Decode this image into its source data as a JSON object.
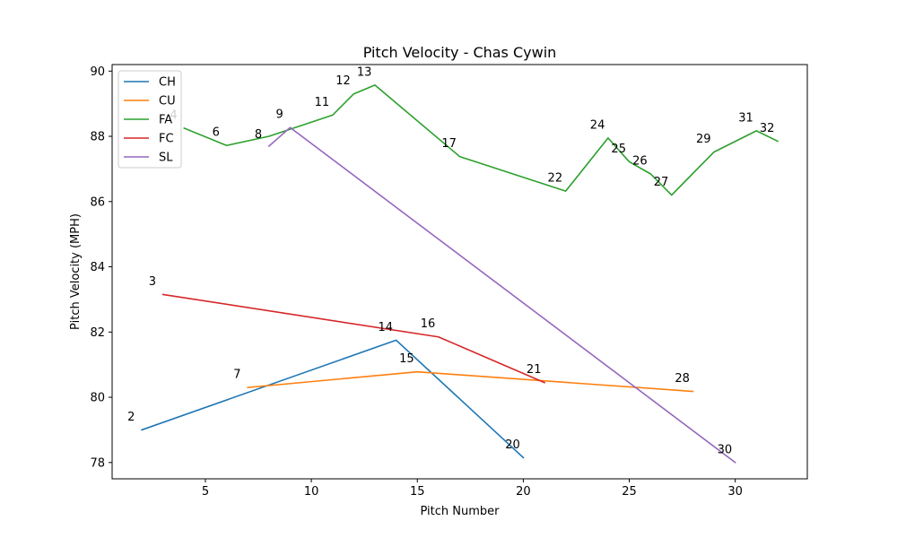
{
  "chart_data": {
    "type": "line",
    "title": "Pitch Velocity - Chas Cywin",
    "xlabel": "Pitch Number",
    "ylabel": "Pitch Velocity (MPH)",
    "xlim": [
      0.6,
      33.4
    ],
    "ylim": [
      77.5,
      90.2
    ],
    "xticks": [
      5,
      10,
      15,
      20,
      25,
      30
    ],
    "yticks": [
      78,
      80,
      82,
      84,
      86,
      88,
      90
    ],
    "legend_position": "top-left",
    "grid": false,
    "series": [
      {
        "name": "CH",
        "color": "#1f77b4",
        "x": [
          2,
          14,
          20
        ],
        "y": [
          79.0,
          81.75,
          78.15
        ]
      },
      {
        "name": "CU",
        "color": "#ff7f0e",
        "x": [
          7,
          15,
          28
        ],
        "y": [
          80.3,
          80.78,
          80.18
        ]
      },
      {
        "name": "FA",
        "color": "#2ca02c",
        "x": [
          4,
          6,
          8,
          11,
          12,
          13,
          17,
          22,
          24,
          25,
          26,
          27,
          29,
          31,
          32
        ],
        "y": [
          88.25,
          87.72,
          88.0,
          88.65,
          89.3,
          89.57,
          87.38,
          86.32,
          87.95,
          87.22,
          86.85,
          86.2,
          87.52,
          88.17,
          87.85
        ]
      },
      {
        "name": "FC",
        "color": "#d62728",
        "x": [
          3,
          16,
          21
        ],
        "y": [
          83.15,
          81.85,
          80.45
        ]
      },
      {
        "name": "SL",
        "color": "#9467bd",
        "x": [
          8,
          9,
          30
        ],
        "y": [
          87.7,
          88.27,
          78.0
        ]
      }
    ],
    "annotations": [
      {
        "text": "2",
        "x": 1.5,
        "y": 79.4
      },
      {
        "text": "3",
        "x": 2.5,
        "y": 83.55
      },
      {
        "text": "4",
        "x": 3.5,
        "y": 88.65
      },
      {
        "text": "6",
        "x": 5.5,
        "y": 88.12
      },
      {
        "text": "7",
        "x": 6.5,
        "y": 80.7
      },
      {
        "text": "8",
        "x": 7.5,
        "y": 88.05
      },
      {
        "text": "9",
        "x": 8.5,
        "y": 88.67
      },
      {
        "text": "11",
        "x": 10.5,
        "y": 89.05
      },
      {
        "text": "12",
        "x": 11.5,
        "y": 89.7
      },
      {
        "text": "13",
        "x": 12.5,
        "y": 89.97
      },
      {
        "text": "14",
        "x": 13.5,
        "y": 82.15
      },
      {
        "text": "15",
        "x": 14.5,
        "y": 81.18
      },
      {
        "text": "16",
        "x": 15.5,
        "y": 82.25
      },
      {
        "text": "17",
        "x": 16.5,
        "y": 87.78
      },
      {
        "text": "20",
        "x": 19.5,
        "y": 78.55
      },
      {
        "text": "21",
        "x": 20.5,
        "y": 80.85
      },
      {
        "text": "22",
        "x": 21.5,
        "y": 86.72
      },
      {
        "text": "24",
        "x": 23.5,
        "y": 88.35
      },
      {
        "text": "25",
        "x": 24.5,
        "y": 87.62
      },
      {
        "text": "26",
        "x": 25.5,
        "y": 87.25
      },
      {
        "text": "27",
        "x": 26.5,
        "y": 86.6
      },
      {
        "text": "28",
        "x": 27.5,
        "y": 80.58
      },
      {
        "text": "29",
        "x": 28.5,
        "y": 87.92
      },
      {
        "text": "30",
        "x": 29.5,
        "y": 78.4
      },
      {
        "text": "31",
        "x": 30.5,
        "y": 88.57
      },
      {
        "text": "32",
        "x": 31.5,
        "y": 88.25
      }
    ]
  }
}
